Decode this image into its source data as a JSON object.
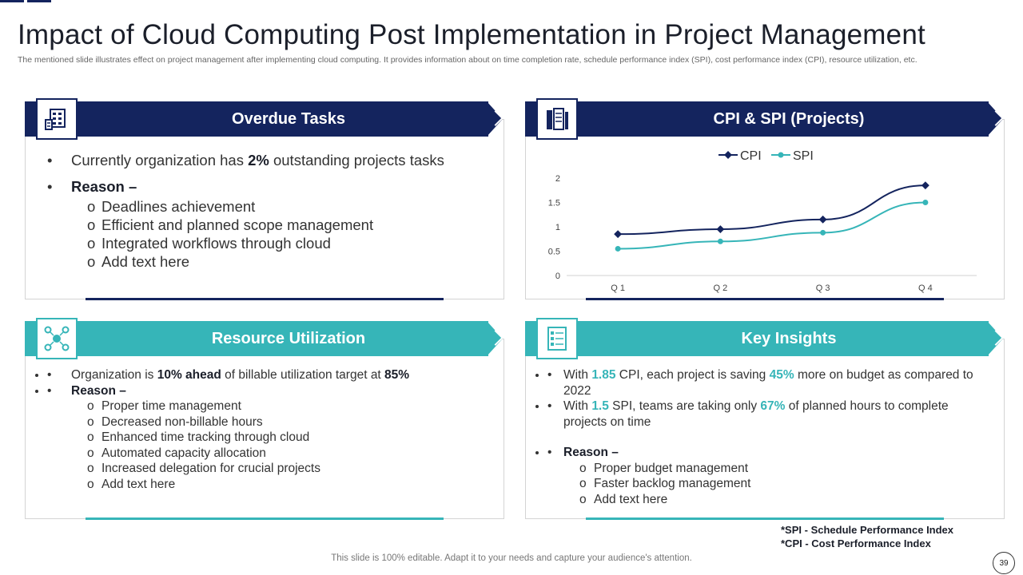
{
  "header": {
    "title": "Impact of Cloud Computing Post Implementation in Project Management",
    "subtitle": "The mentioned slide illustrates effect on project management after implementing cloud computing. It provides information about on time completion rate, schedule performance index (SPI), cost performance index (CPI), resource utilization, etc."
  },
  "overdue": {
    "title": "Overdue Tasks",
    "icon": "calendar-icon",
    "line1_pre": "Currently organization has ",
    "line1_val": "2%",
    "line1_post": " outstanding projects tasks",
    "reason": "Reason –",
    "items": [
      "Deadlines achievement",
      "Efficient and planned scope management",
      "Integrated workflows through cloud",
      "Add text here"
    ]
  },
  "cpi": {
    "title": "CPI & SPI (Projects)",
    "icon": "document-icon"
  },
  "chart_data": {
    "type": "line",
    "categories": [
      "Q 1",
      "Q 2",
      "Q 3",
      "Q 4"
    ],
    "series": [
      {
        "name": "CPI",
        "values": [
          0.85,
          0.95,
          1.15,
          1.85
        ],
        "color": "#14245e"
      },
      {
        "name": "SPI",
        "values": [
          0.55,
          0.7,
          0.88,
          1.5
        ],
        "color": "#36b5b8"
      }
    ],
    "ylim": [
      0,
      2
    ],
    "yticks": [
      "0",
      "0.5",
      "1",
      "1.5",
      "2"
    ],
    "legend": "top"
  },
  "resource": {
    "title": "Resource Utilization",
    "icon": "network-icon",
    "l1_a": "Organization is ",
    "l1_b": "10% ahead",
    "l1_c": " of billable utilization target at ",
    "l1_d": "85%",
    "reason": "Reason –",
    "items": [
      "Proper time management",
      "Decreased non-billable hours",
      "Enhanced time tracking through cloud",
      "Automated capacity allocation",
      "Increased delegation for crucial projects",
      "Add text here"
    ]
  },
  "insights": {
    "title": "Key Insights",
    "icon": "checklist-icon",
    "b1_a": "With ",
    "b1_b": "1.85",
    "b1_c": " CPI, each project is saving ",
    "b1_d": "45%",
    "b1_e": " more on budget as compared to 2022",
    "b2_a": "With ",
    "b2_b": "1.5",
    "b2_c": " SPI, teams are taking only ",
    "b2_d": "67%",
    "b2_e": " of planned hours to complete projects on time",
    "reason": "Reason –",
    "items": [
      "Proper budget management",
      "Faster backlog management",
      "Add text here"
    ]
  },
  "footnotes": {
    "spi": "*SPI - Schedule Performance Index",
    "cpi": "*CPI - Cost Performance Index"
  },
  "footer": {
    "text": "This slide is 100% editable. Adapt it to your needs and capture your audience's attention.",
    "page": "39"
  },
  "colors": {
    "navy": "#14245e",
    "teal": "#36b5b8"
  }
}
